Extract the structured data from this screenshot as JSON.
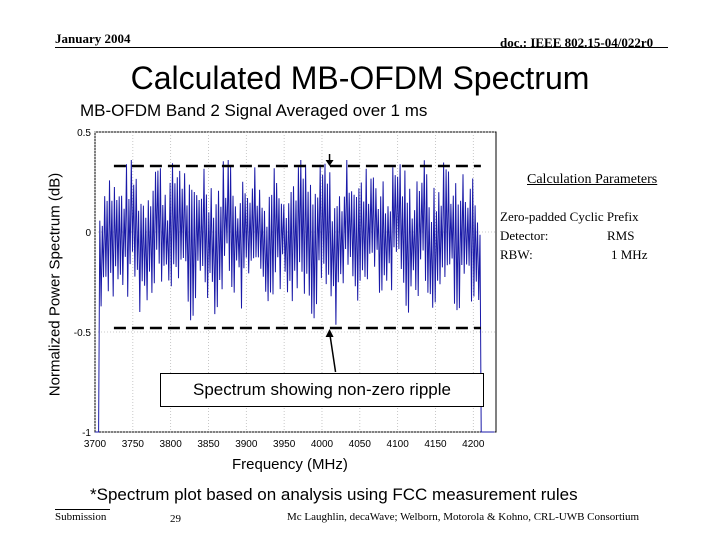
{
  "header": {
    "date": "January 2004",
    "doc": "doc.: IEEE 802.15-04/022r0"
  },
  "title": "Calculated MB-OFDM Spectrum",
  "subtitle": "MB-OFDM Band 2 Signal Averaged over 1 ms",
  "parameters": {
    "heading": "Calculation Parameters",
    "lines": [
      "Zero-padded Cyclic Prefix",
      "Detector:",
      "RBW:"
    ],
    "values": [
      "",
      "RMS",
      "1 MHz"
    ]
  },
  "callout": "Spectrum showing non-zero ripple",
  "footnote": "*Spectrum plot based on analysis using FCC measurement rules",
  "footer": {
    "left": "Submission",
    "page": "29",
    "right": "Mc Laughlin, decaWave; Welborn, Motorola & Kohno, CRL-UWB Consortium"
  },
  "chart_data": {
    "type": "line",
    "xlabel": "Frequency (MHz)",
    "ylabel": "Normalized Power Spectrum (dB)",
    "xlim": [
      3700,
      4230
    ],
    "ylim": [
      -1.0,
      0.5
    ],
    "xticks": [
      3700,
      3750,
      3800,
      3850,
      3900,
      3950,
      4000,
      4050,
      4100,
      4150,
      4200
    ],
    "yticks": [
      0.5,
      0,
      -0.5,
      -1
    ],
    "ytick_labels": [
      "0.5",
      "0",
      "-0.5",
      "-1"
    ],
    "grid": true,
    "envelope_bounds_db": [
      0.33,
      -0.48
    ],
    "series": [
      {
        "name": "Spectrum",
        "note": "dense ripple around 0 dB between about -0.45 and +0.35 dB; band edges near 3705 and 4210 MHz drop off-scale",
        "x": [
          3700,
          3716,
          3732,
          3748,
          3764,
          3780,
          3796,
          3812,
          3828,
          3844,
          3860,
          3876,
          3892,
          3908,
          3924,
          3940,
          3956,
          3972,
          3988,
          4004,
          4020,
          4036,
          4052,
          4068,
          4084,
          4100,
          4116,
          4132,
          4148,
          4164,
          4180,
          4196,
          4212,
          4228
        ],
        "y": [
          -1.0,
          0.12,
          -0.3,
          0.22,
          -0.35,
          0.28,
          -0.18,
          0.31,
          -0.4,
          0.15,
          -0.25,
          0.33,
          -0.3,
          0.2,
          -0.38,
          0.26,
          -0.22,
          0.3,
          -0.33,
          0.18,
          -0.45,
          0.29,
          -0.2,
          0.24,
          -0.36,
          0.3,
          -0.28,
          0.22,
          -0.4,
          0.27,
          -0.25,
          0.1,
          -1.0,
          -1.0
        ]
      }
    ]
  }
}
